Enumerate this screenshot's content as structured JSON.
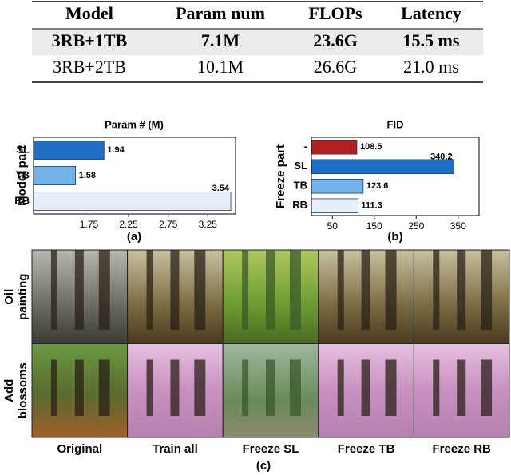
{
  "table": {
    "header": [
      "Model",
      "Param num",
      "FLOPs",
      "Latency"
    ],
    "rows": [
      [
        "3RB+1TB",
        "7.1M",
        "23.6G",
        "15.5 ms"
      ],
      [
        "3RB+2TB",
        "10.1M",
        "26.6G",
        "21.0 ms"
      ]
    ]
  },
  "chart_data": [
    {
      "type": "bar",
      "orientation": "horizontal",
      "title": "Param # (M)",
      "y_label": "Model part",
      "caption": "(a)",
      "categories": [
        "SL",
        "TB",
        "RB"
      ],
      "values": [
        1.94,
        1.58,
        3.54
      ],
      "colors": [
        "#1f6fc6",
        "#74b3ea",
        "#e6eef7"
      ],
      "xlim": [
        1.05,
        3.6
      ],
      "xticks": [
        1.75,
        2.25,
        2.75,
        3.25
      ]
    },
    {
      "type": "bar",
      "orientation": "horizontal",
      "title": "FID",
      "y_label": "Freeze part",
      "caption": "(b)",
      "categories": [
        "-",
        "SL",
        "TB",
        "RB"
      ],
      "values": [
        108.5,
        340.2,
        123.6,
        111.3
      ],
      "colors": [
        "#b42020",
        "#1f6fc6",
        "#74b3ea",
        "#e6eef7"
      ],
      "xlim": [
        0,
        400
      ],
      "xticks": [
        50,
        150,
        250,
        350
      ]
    }
  ],
  "image_grid": {
    "row_labels": [
      [
        "Oil",
        "painting"
      ],
      [
        "Add",
        "blossoms"
      ]
    ],
    "column_labels": [
      "Original",
      "Train all",
      "Freeze SL",
      "Freeze TB",
      "Freeze RB"
    ],
    "caption": "(c)"
  }
}
